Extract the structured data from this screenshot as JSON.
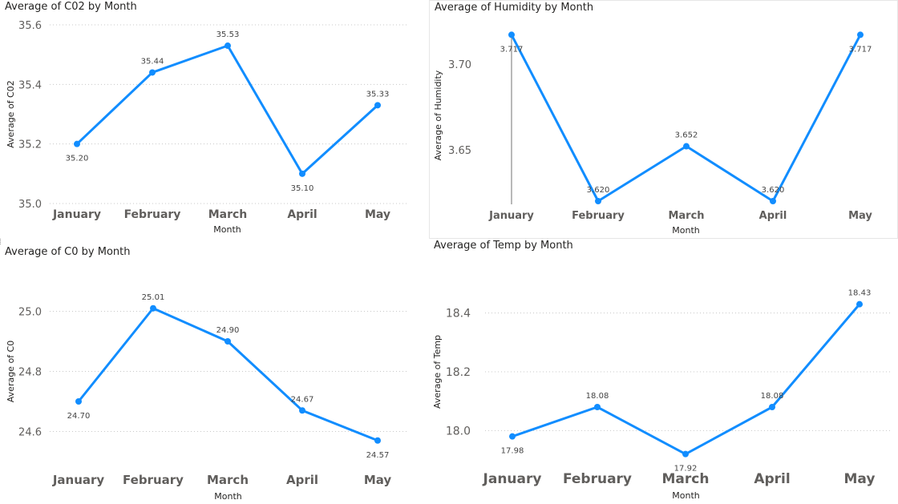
{
  "colors": {
    "series": "#118DFF",
    "crosshair": "#8a8a8a"
  },
  "chart_data": [
    {
      "type": "line",
      "title": "Average of C02 by Month",
      "xlabel": "Month",
      "ylabel": "Average of C02",
      "categories": [
        "January",
        "February",
        "March",
        "April",
        "May"
      ],
      "series": [
        {
          "values": [
            35.2,
            35.44,
            35.53,
            35.1,
            35.33
          ]
        }
      ],
      "data_labels": [
        "35.20",
        "35.44",
        "35.53",
        "35.10",
        "35.33"
      ],
      "label_positions": [
        "below",
        "above",
        "above",
        "below",
        "above"
      ],
      "ylim": [
        35.0,
        35.6
      ],
      "yticks": [
        35.0,
        35.2,
        35.4,
        35.6
      ],
      "ytick_labels": [
        "35.0",
        "35.2",
        "35.4",
        "35.6"
      ],
      "grid": true,
      "legend": "none"
    },
    {
      "type": "line",
      "title": "Average of Humidity by Month",
      "xlabel": "Month",
      "ylabel": "Average of Humidity",
      "categories": [
        "January",
        "February",
        "March",
        "April",
        "May"
      ],
      "series": [
        {
          "values": [
            3.717,
            3.62,
            3.652,
            3.62,
            3.717
          ]
        }
      ],
      "data_labels": [
        "3.717",
        "3.620",
        "3.652",
        "3.620",
        "3.717"
      ],
      "label_positions": [
        "below",
        "above",
        "above",
        "above",
        "below"
      ],
      "ylim": [
        3.62,
        3.72
      ],
      "yticks": [
        3.65,
        3.7
      ],
      "ytick_labels": [
        "3.65",
        "3.70"
      ],
      "grid": false,
      "legend": "none",
      "highlight_category": "January"
    },
    {
      "type": "line",
      "title": "Average of C0 by Month",
      "xlabel": "Month",
      "ylabel": "Average of C0",
      "categories": [
        "January",
        "February",
        "March",
        "April",
        "May"
      ],
      "series": [
        {
          "values": [
            24.7,
            25.01,
            24.9,
            24.67,
            24.57
          ]
        }
      ],
      "data_labels": [
        "24.70",
        "25.01",
        "24.90",
        "24.67",
        "24.57"
      ],
      "label_positions": [
        "below",
        "above",
        "above",
        "above",
        "below"
      ],
      "ylim": [
        24.5,
        25.1
      ],
      "yticks": [
        24.6,
        24.8,
        25.0
      ],
      "ytick_labels": [
        "24.6",
        "24.8",
        "25.0"
      ],
      "grid": true,
      "legend": "none"
    },
    {
      "type": "line",
      "title": "Average of Temp by Month",
      "xlabel": "Month",
      "ylabel": "Average of Temp",
      "categories": [
        "January",
        "February",
        "March",
        "April",
        "May"
      ],
      "series": [
        {
          "values": [
            17.98,
            18.08,
            17.92,
            18.08,
            18.43
          ]
        }
      ],
      "data_labels": [
        "17.98",
        "18.08",
        "17.92",
        "18.08",
        "18.43"
      ],
      "label_positions": [
        "below",
        "above",
        "below",
        "above",
        "above"
      ],
      "ylim": [
        17.9,
        18.5
      ],
      "yticks": [
        18.0,
        18.2,
        18.4
      ],
      "ytick_labels": [
        "18.0",
        "18.2",
        "18.4"
      ],
      "grid": true,
      "legend": "none"
    }
  ]
}
